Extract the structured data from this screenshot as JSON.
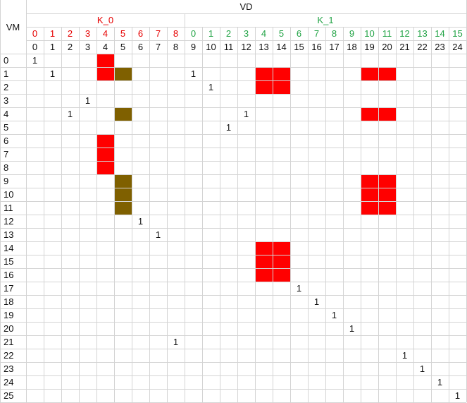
{
  "header": {
    "corner_label": "VM",
    "top_label": "VD",
    "groups": [
      {
        "label": "K_0",
        "color": "#e60000",
        "start_col": 0,
        "end_col": 8
      },
      {
        "label": "K_1",
        "color": "#21a345",
        "start_col": 9,
        "end_col": 24
      }
    ]
  },
  "group_index_row": [
    "0",
    "1",
    "2",
    "3",
    "4",
    "5",
    "6",
    "7",
    "8",
    "0",
    "1",
    "2",
    "3",
    "4",
    "5",
    "6",
    "7",
    "8",
    "9",
    "10",
    "11",
    "12",
    "13",
    "14",
    "15"
  ],
  "vd_index_row": [
    "0",
    "1",
    "2",
    "3",
    "4",
    "5",
    "6",
    "7",
    "8",
    "9",
    "10",
    "11",
    "12",
    "13",
    "14",
    "15",
    "16",
    "17",
    "18",
    "19",
    "20",
    "21",
    "22",
    "23",
    "24"
  ],
  "vm_rows": [
    "0",
    "1",
    "2",
    "3",
    "4",
    "5",
    "6",
    "7",
    "8",
    "9",
    "10",
    "11",
    "12",
    "13",
    "14",
    "15",
    "16",
    "17",
    "18",
    "19",
    "20",
    "21",
    "22",
    "23",
    "24",
    "25"
  ],
  "colors": {
    "red": "#ff0000",
    "olive": "#7f6000",
    "grid_line": "#d4d4d4"
  },
  "fills": [
    {
      "row": 0,
      "col": 4,
      "color": "red"
    },
    {
      "row": 1,
      "col": 4,
      "color": "red"
    },
    {
      "row": 1,
      "col": 5,
      "color": "olive"
    },
    {
      "row": 4,
      "col": 5,
      "color": "olive"
    },
    {
      "row": 6,
      "col": 4,
      "color": "red"
    },
    {
      "row": 7,
      "col": 4,
      "color": "red"
    },
    {
      "row": 8,
      "col": 4,
      "color": "red"
    },
    {
      "row": 9,
      "col": 5,
      "color": "olive"
    },
    {
      "row": 10,
      "col": 5,
      "color": "olive"
    },
    {
      "row": 11,
      "col": 5,
      "color": "olive"
    },
    {
      "row": 1,
      "col": 13,
      "color": "red"
    },
    {
      "row": 1,
      "col": 14,
      "color": "red"
    },
    {
      "row": 2,
      "col": 13,
      "color": "red"
    },
    {
      "row": 2,
      "col": 14,
      "color": "red"
    },
    {
      "row": 14,
      "col": 13,
      "color": "red"
    },
    {
      "row": 14,
      "col": 14,
      "color": "red"
    },
    {
      "row": 15,
      "col": 13,
      "color": "red"
    },
    {
      "row": 15,
      "col": 14,
      "color": "red"
    },
    {
      "row": 16,
      "col": 13,
      "color": "red"
    },
    {
      "row": 16,
      "col": 14,
      "color": "red"
    },
    {
      "row": 1,
      "col": 19,
      "color": "red"
    },
    {
      "row": 1,
      "col": 20,
      "color": "red"
    },
    {
      "row": 4,
      "col": 19,
      "color": "red"
    },
    {
      "row": 4,
      "col": 20,
      "color": "red"
    },
    {
      "row": 9,
      "col": 19,
      "color": "red"
    },
    {
      "row": 9,
      "col": 20,
      "color": "red"
    },
    {
      "row": 10,
      "col": 19,
      "color": "red"
    },
    {
      "row": 10,
      "col": 20,
      "color": "red"
    },
    {
      "row": 11,
      "col": 19,
      "color": "red"
    },
    {
      "row": 11,
      "col": 20,
      "color": "red"
    }
  ],
  "ones": [
    {
      "row": 0,
      "col": 0,
      "text": "1"
    },
    {
      "row": 1,
      "col": 1,
      "text": "1"
    },
    {
      "row": 1,
      "col": 9,
      "text": "1"
    },
    {
      "row": 2,
      "col": 10,
      "text": "1"
    },
    {
      "row": 3,
      "col": 3,
      "text": "1"
    },
    {
      "row": 4,
      "col": 2,
      "text": "1"
    },
    {
      "row": 4,
      "col": 12,
      "text": "1"
    },
    {
      "row": 5,
      "col": 11,
      "text": "1"
    },
    {
      "row": 12,
      "col": 6,
      "text": "1"
    },
    {
      "row": 13,
      "col": 7,
      "text": "1"
    },
    {
      "row": 17,
      "col": 15,
      "text": "1"
    },
    {
      "row": 18,
      "col": 16,
      "text": "1"
    },
    {
      "row": 19,
      "col": 17,
      "text": "1"
    },
    {
      "row": 20,
      "col": 18,
      "text": "1"
    },
    {
      "row": 21,
      "col": 8,
      "text": "1"
    },
    {
      "row": 22,
      "col": 21,
      "text": "1"
    },
    {
      "row": 23,
      "col": 22,
      "text": "1"
    },
    {
      "row": 24,
      "col": 23,
      "text": "1"
    },
    {
      "row": 25,
      "col": 24,
      "text": "1"
    }
  ]
}
